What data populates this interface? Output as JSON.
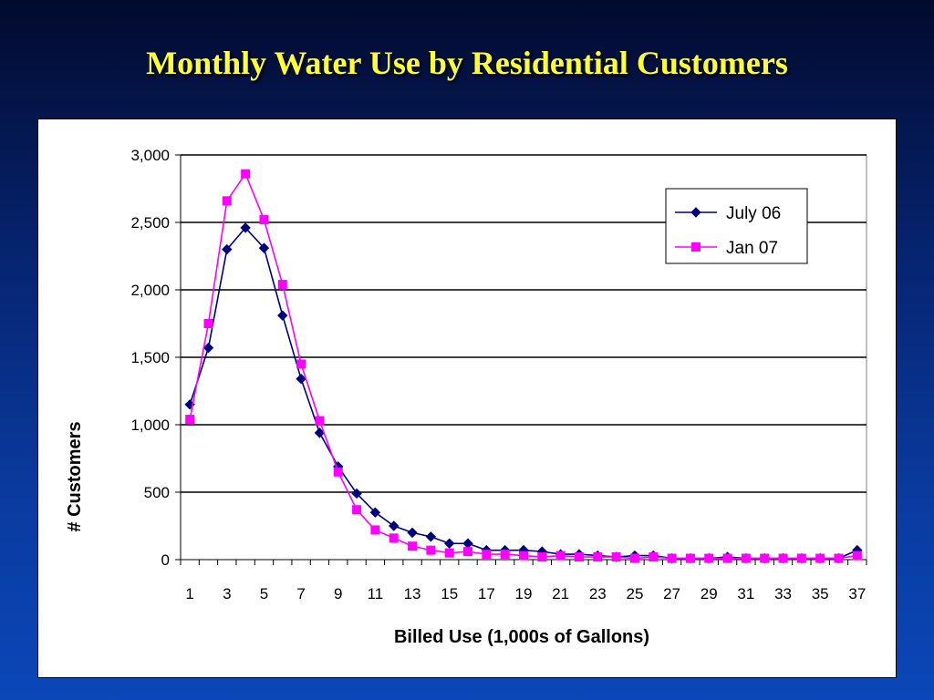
{
  "title": "Monthly Water Use by Residential Customers",
  "chart_data": {
    "type": "line",
    "xlabel": "Billed Use (1,000s of Gallons)",
    "ylabel": "# Customers",
    "xlim": [
      1,
      37
    ],
    "ylim": [
      0,
      3000
    ],
    "x_tick_labels": [
      "1",
      "3",
      "5",
      "7",
      "9",
      "11",
      "13",
      "15",
      "17",
      "19",
      "21",
      "23",
      "25",
      "27",
      "29",
      "31",
      "33",
      "35",
      "37"
    ],
    "y_tick_labels": [
      "0",
      "500",
      "1,000",
      "1,500",
      "2,000",
      "2,500",
      "3,000"
    ],
    "y_ticks": [
      0,
      500,
      1000,
      1500,
      2000,
      2500,
      3000
    ],
    "grid": true,
    "legend_position": "top-right",
    "x": [
      1,
      2,
      3,
      4,
      5,
      6,
      7,
      8,
      9,
      10,
      11,
      12,
      13,
      14,
      15,
      16,
      17,
      18,
      19,
      20,
      21,
      22,
      23,
      24,
      25,
      26,
      27,
      28,
      29,
      30,
      31,
      32,
      33,
      34,
      35,
      36,
      37
    ],
    "series": [
      {
        "name": "July 06",
        "color": "#00007f",
        "marker": "diamond",
        "values": [
          1150,
          1570,
          2300,
          2460,
          2310,
          1810,
          1340,
          940,
          690,
          490,
          350,
          250,
          200,
          170,
          120,
          120,
          70,
          70,
          70,
          60,
          40,
          40,
          30,
          20,
          30,
          30,
          10,
          10,
          10,
          20,
          10,
          10,
          10,
          10,
          10,
          10,
          70
        ]
      },
      {
        "name": "Jan 07",
        "color": "#ff00ff",
        "marker": "square",
        "values": [
          1040,
          1750,
          2660,
          2860,
          2520,
          2040,
          1450,
          1030,
          650,
          370,
          220,
          160,
          100,
          70,
          50,
          60,
          40,
          40,
          30,
          20,
          30,
          20,
          20,
          20,
          10,
          20,
          10,
          10,
          10,
          10,
          10,
          10,
          10,
          10,
          10,
          10,
          30
        ]
      }
    ]
  }
}
